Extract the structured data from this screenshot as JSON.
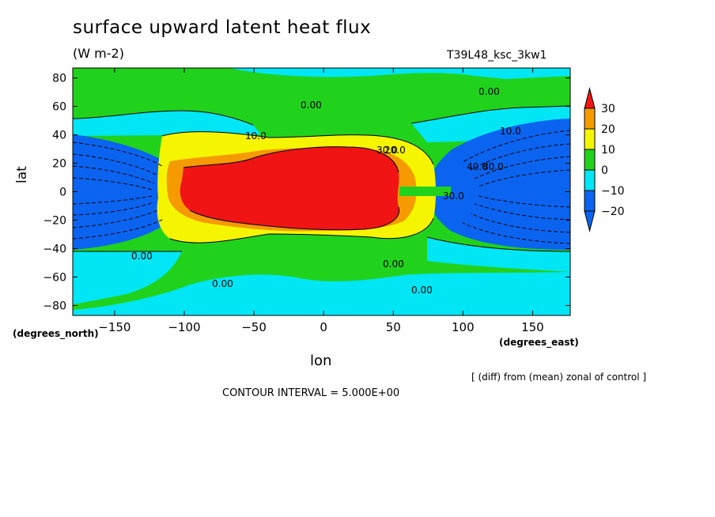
{
  "chart_data": {
    "type": "heatmap",
    "title": "surface upward latent heat flux",
    "units": "(W m-2)",
    "run_label": "T39L48_ksc_3kw1",
    "xlabel": "lon",
    "ylabel": "lat",
    "x_units_label": "(degrees_east)",
    "y_units_label": "(degrees_north)",
    "xlim": [
      -180,
      177
    ],
    "ylim": [
      -87,
      87
    ],
    "x_ticks": [
      -150,
      -100,
      -50,
      0,
      50,
      100,
      150
    ],
    "y_ticks": [
      -80,
      -60,
      -40,
      -20,
      0,
      20,
      40,
      60,
      80
    ],
    "note": "[ (diff) from (mean) zonal of control ]",
    "contour_interval": "CONTOUR INTERVAL = 5.000E+00",
    "colorbar": {
      "levels": [
        -20,
        -10,
        0,
        10,
        20,
        30
      ],
      "labels": [
        "30",
        "20",
        "10",
        "0",
        "−10",
        "−20"
      ],
      "colors": {
        "below_minus20": "#0a64f0",
        "minus20_to_minus10": "#0a64f0",
        "minus10_to_0": "#00e6f5",
        "0_to_10": "#21d21c",
        "10_to_20": "#f5f500",
        "20_to_30": "#f59b00",
        "above_30": "#f01414"
      }
    },
    "contour_labels": [
      "0.00",
      "0.00",
      "0.00",
      "0.00",
      "0.00",
      "0.00",
      "10.0",
      "10.0",
      "30.0",
      "20.0",
      "40.0",
      "30.0",
      "80.0"
    ]
  }
}
